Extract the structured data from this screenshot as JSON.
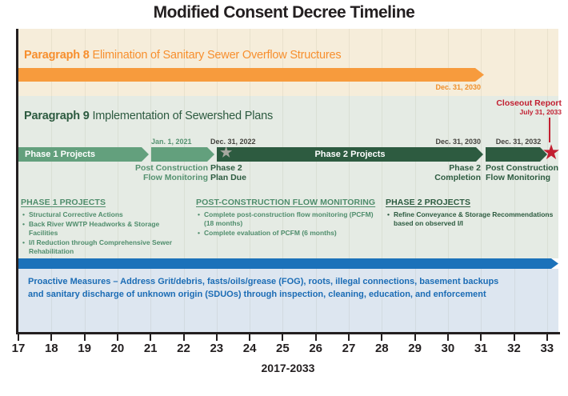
{
  "title": "Modified Consent Decree Timeline",
  "icons": {
    "star": "★"
  },
  "p8": {
    "heading_bold": "Paragraph 8",
    "heading_rest": "Elimination of Sanitary Sewer Overflow Structures",
    "arrow_end_label": "Dec. 31, 2030"
  },
  "p9": {
    "heading_bold": "Paragraph 9",
    "heading_rest": "Implementation of Sewershed Plans"
  },
  "bars": {
    "phase1": {
      "label": "Phase 1 Projects"
    },
    "phase2": {
      "label": "Phase 2 Projects"
    }
  },
  "milestone_labels": {
    "jan2021": "Jan. 1, 2021",
    "dec2022": "Dec. 31, 2022",
    "dec2030": "Dec. 31, 2030",
    "dec2032": "Dec. 31, 2032"
  },
  "annotations": {
    "pcfm1": {
      "line1": "Post Construction",
      "line2": "Flow Monitoring"
    },
    "phase2_plan": {
      "line1": "Phase 2",
      "line2": "Plan Due"
    },
    "phase2_completion": {
      "line1": "Phase 2",
      "line2": "Completion"
    },
    "pcfm2": {
      "line1": "Post Construction",
      "line2": "Flow Monitoring"
    },
    "closeout": {
      "title": "Closeout Report",
      "date": "July 31, 2033"
    }
  },
  "lists": {
    "phase1_projects": {
      "heading": "PHASE 1 PROJECTS",
      "items": [
        "Structural Corrective Actions",
        "Back River WWTP Headworks & Storage Facilities",
        "I/I Reduction through Comprehensive Sewer Rehabilitation"
      ]
    },
    "pcfm": {
      "heading": "POST-CONSTRUCTION FLOW MONITORING",
      "items": [
        "Complete post-construction flow monitoring (PCFM) (18 months)",
        "Complete evaluation of PCFM (6 months)"
      ]
    },
    "phase2_projects": {
      "heading": "PHASE 2 PROJECTS",
      "items": [
        "Refine Conveyance & Storage Recommendations based on observed I/I"
      ]
    }
  },
  "proactive": {
    "line1": "Proactive Measures – Address Grit/debris, fasts/oils/grease (FOG), roots, illegal connections, basement backups",
    "line2": "and sanitary discharge of unknown origin (SDUOs) through inspection, cleaning, education, and enforcement"
  },
  "axis": {
    "years": [
      "17",
      "18",
      "19",
      "20",
      "21",
      "22",
      "23",
      "24",
      "25",
      "26",
      "27",
      "28",
      "29",
      "30",
      "31",
      "32",
      "33"
    ],
    "range_label": "2017-2033"
  },
  "colors": {
    "orange": "#f79b3d",
    "medium_green": "#63a07d",
    "dark_green": "#2d5b40",
    "blue": "#1c72ba",
    "red": "#c21f31",
    "cream_bg": "#f6edda",
    "green_bg": "#e5ebe4",
    "blue_bg": "#dde6f0",
    "gray_star": "#a8a8a0"
  },
  "chart_data": {
    "type": "bar",
    "title": "Modified Consent Decree Timeline",
    "xlabel": "2017-2033",
    "xlim": [
      2017,
      2033
    ],
    "x_ticks": [
      17,
      18,
      19,
      20,
      21,
      22,
      23,
      24,
      25,
      26,
      27,
      28,
      29,
      30,
      31,
      32,
      33
    ],
    "series": [
      {
        "name": "Paragraph 8 – Elimination of Sanitary Sewer Overflow Structures",
        "start": 2017,
        "end": 2031,
        "end_label": "Dec. 31, 2030",
        "color": "#f79b3d"
      },
      {
        "name": "Phase 1 Projects",
        "start": 2017,
        "end": 2021,
        "end_label": "Jan. 1, 2021",
        "color": "#63a07d"
      },
      {
        "name": "Post Construction Flow Monitoring (Phase 1)",
        "start": 2021,
        "end": 2023,
        "end_label": "Dec. 31, 2022",
        "color": "#63a07d"
      },
      {
        "name": "Phase 2 Projects",
        "start": 2023,
        "end": 2031,
        "start_label": "Dec. 31, 2022 – Phase 2 Plan Due",
        "end_label": "Dec. 31, 2030 – Phase 2 Completion",
        "color": "#2d5b40"
      },
      {
        "name": "Post Construction Flow Monitoring (Phase 2)",
        "start": 2031,
        "end": 2033,
        "end_label": "Dec. 31, 2032",
        "color": "#2d5b40"
      },
      {
        "name": "Proactive Measures",
        "start": 2017,
        "end": 2033,
        "color": "#1c72ba"
      }
    ],
    "milestones": [
      {
        "name": "Phase 2 Plan Due",
        "date": "Dec. 31, 2022",
        "x": 2023
      },
      {
        "name": "Closeout Report",
        "date": "July 31, 2033",
        "x": 2033.6
      }
    ]
  }
}
